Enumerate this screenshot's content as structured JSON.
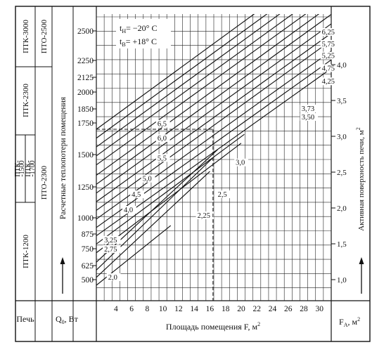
{
  "left_columns": {
    "col1": {
      "top_label": "ПТК-3000",
      "mid_label": "ПТК-2300",
      "small_a": "ПТК-\n-1500",
      "small_b": "ПТК-\n-1700",
      "low_label": "ПТК-1200"
    },
    "col2": {
      "top_label": "ПТО-2500",
      "mid_label": "ПТО-2300"
    },
    "ylabel": "Расчетные теплопотери помещения"
  },
  "footer": {
    "stove_label": "Печь",
    "q_label": "Q",
    "q_sub": "0",
    "q_unit": ",  Вт",
    "xlabel": "Площадь помещения F,  м",
    "xlabel_sup": "2",
    "fa_label": "F",
    "fa_sub": "A",
    "fa_unit": ",  м",
    "fa_sup": "2"
  },
  "legend": {
    "tn_t": "t",
    "tn_sub": "Н",
    "tn_val": "= −20",
    "tn_unit": "° C",
    "tv_t": "t",
    "tv_sub": "В",
    "tv_val": "= +18",
    "tv_unit": "° C"
  },
  "chart_data": {
    "type": "line",
    "xlabel": "Площадь помещения F,  м²",
    "ylabel": "Расчетные теплопотери помещения",
    "y2label": "Активная поверхность печи, м²",
    "xlim": [
      1.5,
      31.5
    ],
    "x_ticks": [
      4,
      6,
      8,
      10,
      12,
      14,
      16,
      18,
      20,
      22,
      24,
      26,
      28,
      30
    ],
    "y_ticks": [
      500,
      625,
      750,
      875,
      1000,
      1250,
      1500,
      1750,
      1850,
      2000,
      2125,
      2250,
      2500
    ],
    "y_tick_labels": [
      "500",
      "625",
      "750",
      "875",
      "1000",
      "1250",
      "1500",
      "1750",
      "1850",
      "2000",
      "2125",
      "2250",
      "2500"
    ],
    "y2_ticks": [
      1.0,
      1.5,
      2.0,
      2.5,
      3.0,
      3.5,
      4.0
    ],
    "y2_tick_labels": [
      "1,0",
      "1,5",
      "2,0",
      "2,5",
      "3,0",
      "3,5",
      "4,0"
    ],
    "grid": true,
    "series": [
      {
        "label": "2,0",
        "x": [
          1.5,
          11.0
        ],
        "y": [
          450,
          940
        ]
      },
      {
        "label": "2,25",
        "x": [
          1.5,
          16.0
        ],
        "y": [
          520,
          1370
        ]
      },
      {
        "label": "2,5",
        "x": [
          1.5,
          16.3
        ],
        "y": [
          585,
          1470
        ]
      },
      {
        "label": "2,75",
        "x": [
          1.5,
          17.0
        ],
        "y": [
          650,
          1540
        ]
      },
      {
        "label": "3,0",
        "x": [
          1.5,
          20.0
        ],
        "y": [
          720,
          1590
        ]
      },
      {
        "label": "3,25",
        "x": [
          1.5,
          20.4
        ],
        "y": [
          790,
          1660
        ]
      },
      {
        "label": "3,50",
        "x": [
          1.5,
          31.5
        ],
        "y": [
          860,
          2190
        ]
      },
      {
        "label": "3,73",
        "x": [
          1.5,
          31.5
        ],
        "y": [
          925,
          2255
        ]
      },
      {
        "label": "4,0",
        "x": [
          1.5,
          31.5
        ],
        "y": [
          990,
          2330
        ]
      },
      {
        "label": "4,25",
        "x": [
          1.5,
          31.5
        ],
        "y": [
          1060,
          2420
        ]
      },
      {
        "label": "4,5",
        "x": [
          1.5,
          31.5
        ],
        "y": [
          1130,
          2480
        ]
      },
      {
        "label": "4,75",
        "x": [
          1.5,
          31.5
        ],
        "y": [
          1200,
          2560
        ]
      },
      {
        "label": "5,0",
        "x": [
          1.5,
          31.5
        ],
        "y": [
          1270,
          2640
        ]
      },
      {
        "label": "5,25",
        "x": [
          1.5,
          31.5
        ],
        "y": [
          1340,
          2720
        ]
      },
      {
        "label": "5,5",
        "x": [
          1.5,
          31.5
        ],
        "y": [
          1420,
          2800
        ]
      },
      {
        "label": "5,75",
        "x": [
          1.5,
          31.5
        ],
        "y": [
          1490,
          2880
        ]
      },
      {
        "label": "6,0",
        "x": [
          1.5,
          31.5
        ],
        "y": [
          1560,
          2960
        ]
      },
      {
        "label": "6,25",
        "x": [
          1.5,
          31.5
        ],
        "y": [
          1630,
          3040
        ]
      },
      {
        "label": "6,5",
        "x": [
          1.5,
          31.5
        ],
        "y": [
          1700,
          3120
        ]
      }
    ],
    "line_labels": [
      {
        "text": "2,0",
        "x": 3.0,
        "y": 500
      },
      {
        "text": "2,75",
        "x": 2.5,
        "y": 730
      },
      {
        "text": "3,25",
        "x": 2.5,
        "y": 805
      },
      {
        "text": "4,0",
        "x": 5.0,
        "y": 1045
      },
      {
        "text": "4,5",
        "x": 6.0,
        "y": 1170
      },
      {
        "text": "5,0",
        "x": 7.4,
        "y": 1295
      },
      {
        "text": "5,5",
        "x": 9.3,
        "y": 1455
      },
      {
        "text": "6,0",
        "x": 9.3,
        "y": 1610
      },
      {
        "text": "6,5",
        "x": 9.3,
        "y": 1725
      },
      {
        "text": "2,25",
        "x": 14.4,
        "y": 1000
      },
      {
        "text": "2,5",
        "x": 17.0,
        "y": 1170
      },
      {
        "text": "3,0",
        "x": 19.3,
        "y": 1420
      },
      {
        "text": "3,50",
        "x": 27.7,
        "y": 1775
      },
      {
        "text": "3,73",
        "x": 27.7,
        "y": 1835
      },
      {
        "text": "4,25",
        "x": 30.3,
        "y": 2070
      },
      {
        "text": "4,75",
        "x": 30.3,
        "y": 2175
      },
      {
        "text": "5,25",
        "x": 30.3,
        "y": 2270
      },
      {
        "text": "5,75",
        "x": 30.3,
        "y": 2370
      },
      {
        "text": "6,25",
        "x": 30.3,
        "y": 2470
      }
    ],
    "reference": {
      "x": 16.4,
      "y": 1700
    }
  }
}
